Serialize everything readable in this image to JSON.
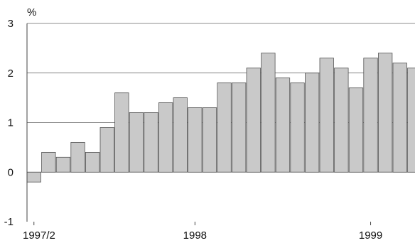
{
  "chart_data": {
    "type": "bar",
    "title": "",
    "xlabel": "",
    "ylabel": "%",
    "ylim": [
      -1,
      3
    ],
    "yticks": [
      3,
      2,
      1,
      0,
      -1
    ],
    "grid": true,
    "x_tick_labels": [
      {
        "label": "1997/2",
        "index": 0
      },
      {
        "label": "1998",
        "index": 11
      },
      {
        "label": "1999",
        "index": 23
      }
    ],
    "values": [
      -0.2,
      0.4,
      0.3,
      0.6,
      0.4,
      0.9,
      1.6,
      1.2,
      1.2,
      1.4,
      1.5,
      1.3,
      1.3,
      1.8,
      1.8,
      2.1,
      2.4,
      1.9,
      1.8,
      2.0,
      2.3,
      2.1,
      1.7,
      2.3,
      2.4,
      2.2,
      2.1
    ],
    "colors": {
      "bar_fill": "#c9c9c9",
      "bar_stroke": "#555555",
      "grid": "#666666"
    }
  }
}
